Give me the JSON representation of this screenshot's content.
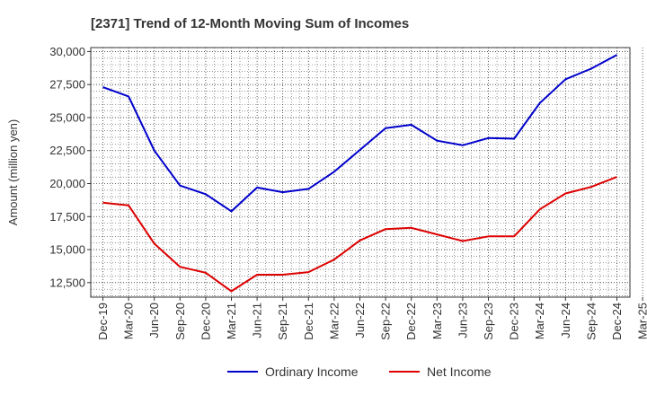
{
  "chart_data": {
    "type": "line",
    "title": "[2371]  Trend of 12-Month Moving Sum of Incomes",
    "xlabel": "",
    "ylabel": "Amount (million yen)",
    "ylim": [
      11400,
      30300
    ],
    "yticks": [
      12500,
      15000,
      17500,
      20000,
      22500,
      25000,
      27500,
      30000
    ],
    "ytick_labels": [
      "12,500",
      "15,000",
      "17,500",
      "20,000",
      "22,500",
      "25,000",
      "27,500",
      "30,000"
    ],
    "categories": [
      "Dec-19",
      "Mar-20",
      "Jun-20",
      "Sep-20",
      "Dec-20",
      "Mar-21",
      "Jun-21",
      "Sep-21",
      "Dec-21",
      "Mar-22",
      "Jun-22",
      "Sep-22",
      "Dec-22",
      "Mar-23",
      "Jun-23",
      "Sep-23",
      "Dec-23",
      "Mar-24",
      "Jun-24",
      "Sep-24",
      "Dec-24",
      "Mar-25"
    ],
    "grid": true,
    "legend_position": "bottom",
    "series": [
      {
        "name": "Ordinary Income",
        "color": "#0000cc",
        "values": [
          27300,
          26600,
          22500,
          19850,
          19200,
          17900,
          19700,
          19350,
          19600,
          20900,
          22550,
          24200,
          24450,
          23250,
          22900,
          23450,
          23400,
          26100,
          27900,
          28700,
          29750,
          null
        ]
      },
      {
        "name": "Net Income",
        "color": "#dd0000",
        "values": [
          18550,
          18350,
          15450,
          13700,
          13250,
          11850,
          13100,
          13100,
          13300,
          14250,
          15700,
          16550,
          16650,
          16150,
          15650,
          16000,
          16000,
          18050,
          19250,
          19750,
          20500,
          null
        ]
      }
    ]
  }
}
